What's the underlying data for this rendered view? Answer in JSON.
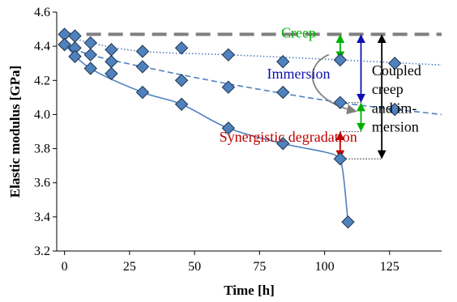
{
  "chart_data": {
    "type": "scatter",
    "xlabel": "Time [h]",
    "ylabel": "Elastic modulus [GPa]",
    "xlim": [
      -3,
      145
    ],
    "ylim": [
      3.2,
      4.6
    ],
    "x_ticks": [
      "0",
      "25",
      "50",
      "75",
      "100",
      "125"
    ],
    "x_tick_values": [
      0,
      25,
      50,
      75,
      100,
      125
    ],
    "y_ticks": [
      "3.2",
      "3.4",
      "3.6",
      "3.8",
      "4.0",
      "4.2",
      "4.4",
      "4.6"
    ],
    "y_tick_values": [
      3.2,
      3.4,
      3.6,
      3.8,
      4.0,
      4.2,
      4.4,
      4.6
    ],
    "grid": false,
    "reference_level": 4.47,
    "series": [
      {
        "color": "#4F81BD",
        "line_style": "dotted",
        "points": [
          [
            0,
            4.47
          ],
          [
            4,
            4.46
          ],
          [
            10,
            4.42
          ],
          [
            18,
            4.38
          ],
          [
            30,
            4.37
          ],
          [
            45,
            4.39
          ],
          [
            63,
            4.35
          ],
          [
            84,
            4.31
          ],
          [
            106,
            4.32
          ],
          [
            127,
            4.3
          ]
        ],
        "curve": [
          [
            0,
            4.47
          ],
          [
            10,
            4.42
          ],
          [
            30,
            4.37
          ],
          [
            63,
            4.35
          ],
          [
            106,
            4.32
          ],
          [
            145,
            4.29
          ]
        ]
      },
      {
        "color": "#4F81BD",
        "line_style": "dashed",
        "points": [
          [
            0,
            4.41
          ],
          [
            4,
            4.39
          ],
          [
            10,
            4.35
          ],
          [
            18,
            4.31
          ],
          [
            30,
            4.28
          ],
          [
            45,
            4.2
          ],
          [
            63,
            4.16
          ],
          [
            84,
            4.13
          ],
          [
            106,
            4.07
          ],
          [
            127,
            4.03
          ]
        ],
        "curve": [
          [
            0,
            4.41
          ],
          [
            10,
            4.35
          ],
          [
            30,
            4.28
          ],
          [
            63,
            4.18
          ],
          [
            106,
            4.07
          ],
          [
            145,
            4.0
          ]
        ]
      },
      {
        "color": "#4F81BD",
        "line_style": "solid",
        "points": [
          [
            0,
            4.41
          ],
          [
            4,
            4.34
          ],
          [
            10,
            4.27
          ],
          [
            18,
            4.24
          ],
          [
            30,
            4.13
          ],
          [
            45,
            4.06
          ],
          [
            63,
            3.92
          ],
          [
            84,
            3.83
          ],
          [
            106,
            3.74
          ],
          [
            109,
            3.37
          ]
        ],
        "curve": [
          [
            0,
            4.41
          ],
          [
            10,
            4.27
          ],
          [
            30,
            4.13
          ],
          [
            45,
            4.06
          ],
          [
            63,
            3.92
          ],
          [
            84,
            3.83
          ],
          [
            100,
            3.78
          ],
          [
            105,
            3.75
          ],
          [
            107,
            3.67
          ],
          [
            109,
            3.37
          ]
        ]
      }
    ],
    "annotations": [
      {
        "text": "Creep",
        "color": "#00B000",
        "x": 90,
        "y": 4.45
      },
      {
        "text": "Immersion",
        "color": "#1010B0",
        "x": 90,
        "y": 4.21
      },
      {
        "text": "Synergistic degradation",
        "color": "#C00000",
        "x": 86,
        "y": 3.84
      },
      {
        "text": "Coupled",
        "color": "#000000",
        "x": 130,
        "y": 4.23
      },
      {
        "text": "creep",
        "color": "#000000",
        "x": 130,
        "y": 4.12
      },
      {
        "text": "and im-",
        "color": "#000000",
        "x": 130,
        "y": 4.01
      },
      {
        "text": "mersion",
        "color": "#000000",
        "x": 130,
        "y": 3.9
      }
    ],
    "arrows": [
      {
        "color": "#00B000",
        "x": 106,
        "y1": 4.47,
        "y2": 4.32
      },
      {
        "color": "#00B000",
        "x": 114,
        "y1": 4.07,
        "y2": 3.9
      },
      {
        "color": "#1010B0",
        "x": 114,
        "y1": 4.47,
        "y2": 4.07
      },
      {
        "color": "#C00000",
        "x": 106,
        "y1": 3.9,
        "y2": 3.74
      },
      {
        "color": "#000000",
        "x": 122,
        "y1": 4.47,
        "y2": 3.74
      }
    ],
    "guides": [
      {
        "from": [
          106,
          4.07
        ],
        "to": [
          114,
          4.07
        ]
      },
      {
        "from": [
          106,
          3.9
        ],
        "to": [
          114,
          3.9
        ]
      },
      {
        "from": [
          106,
          3.74
        ],
        "to": [
          122,
          3.74
        ]
      }
    ]
  }
}
